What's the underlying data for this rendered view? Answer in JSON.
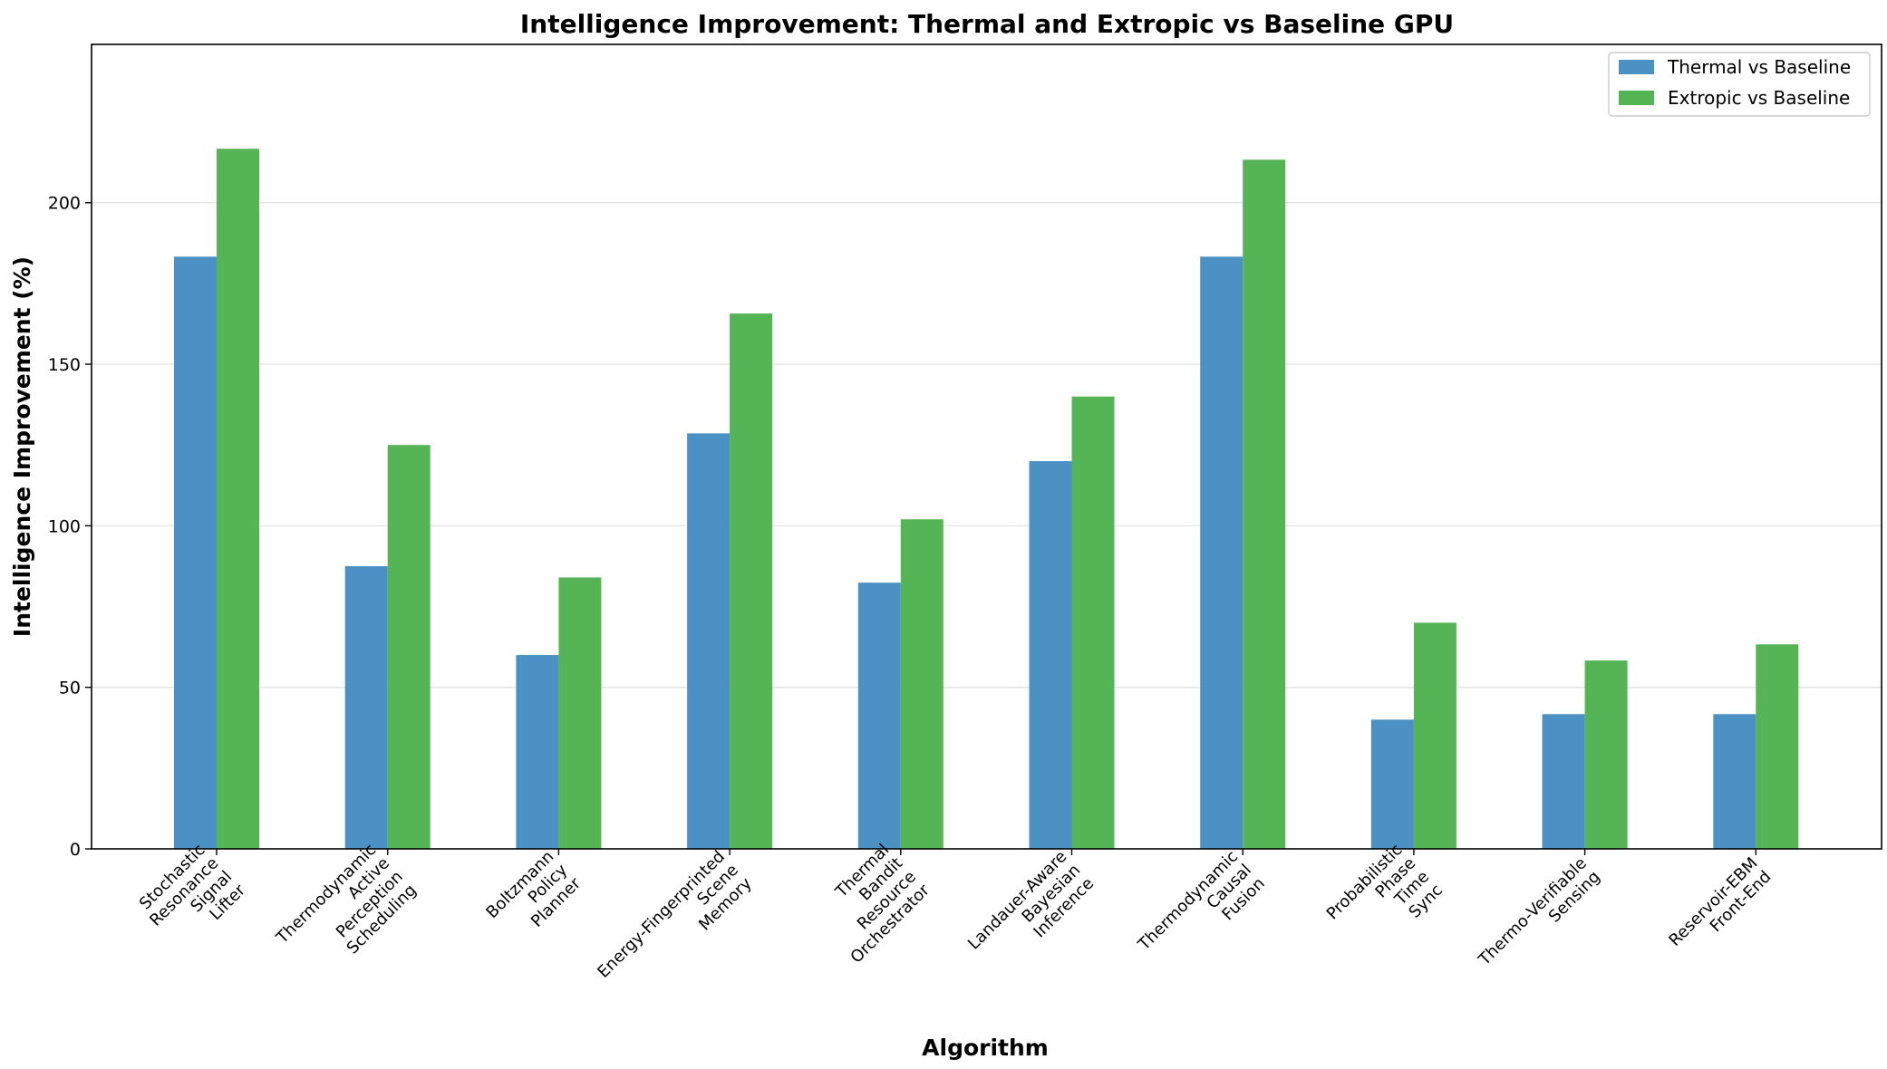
{
  "chart_data": {
    "type": "bar",
    "title": "Intelligence Improvement: Thermal and Extropic vs Baseline GPU",
    "xlabel": "Algorithm",
    "ylabel": "Intelligence Improvement (%)",
    "ylim": [
      0,
      249
    ],
    "yticks": [
      0,
      50,
      100,
      150,
      200
    ],
    "grid": "horizontal",
    "legend_position": "top-right",
    "categories": [
      [
        "Stochastic",
        "Resonance",
        "Signal",
        "Lifter"
      ],
      [
        "Thermodynamic",
        "Active",
        "Perception",
        "Scheduling"
      ],
      [
        "Boltzmann",
        "Policy",
        "Planner"
      ],
      [
        "Energy-Fingerprinted",
        "Scene",
        "Memory"
      ],
      [
        "Thermal",
        "Bandit",
        "Resource",
        "Orchestrator"
      ],
      [
        "Landauer-Aware",
        "Bayesian",
        "Inference"
      ],
      [
        "Thermodynamic",
        "Causal",
        "Fusion"
      ],
      [
        "Probabilistic",
        "Phase",
        "Time",
        "Sync"
      ],
      [
        "Thermo-Verifiable",
        "Sensing"
      ],
      [
        "Reservoir-EBM",
        "Front-End"
      ]
    ],
    "series": [
      {
        "name": "Thermal vs Baseline",
        "color": "#4c91c4",
        "values": [
          183.3,
          87.5,
          60.0,
          128.6,
          82.4,
          120.0,
          183.3,
          40.0,
          41.7,
          41.7
        ]
      },
      {
        "name": "Extropic vs Baseline",
        "color": "#55b455",
        "values": [
          216.7,
          125.0,
          84.0,
          165.7,
          102.0,
          140.0,
          213.3,
          70.0,
          58.3,
          63.3
        ]
      }
    ]
  }
}
